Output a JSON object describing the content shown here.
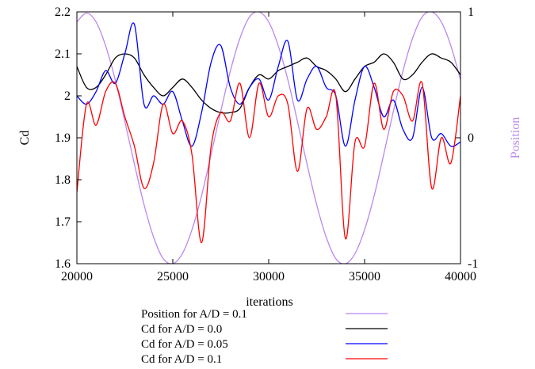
{
  "chart_data": {
    "type": "line",
    "xlabel": "iterations",
    "ylabel": "Cd",
    "y2label": "Position",
    "xlim": [
      20000,
      40000
    ],
    "ylim": [
      1.6,
      2.2
    ],
    "y2lim": [
      -1,
      1
    ],
    "xticks": [
      "20000",
      "25000",
      "30000",
      "35000",
      "40000"
    ],
    "yticks": [
      "1.6",
      "1.7",
      "1.8",
      "1.9",
      "2",
      "2.1",
      "2.2"
    ],
    "y2ticks": [
      "-1",
      "0",
      "1"
    ],
    "grid": false,
    "legend_position": "bottom-center",
    "series": [
      {
        "name": "Position for A/D = 0.1",
        "axis": "y2",
        "color": "#bb88ee",
        "x": [
          20000,
          20500,
          21000,
          21500,
          22000,
          22500,
          23000,
          23500,
          24000,
          24500,
          25000,
          25500,
          26000,
          26500,
          27000,
          27500,
          28000,
          28500,
          29000,
          29500,
          30000,
          30500,
          31000,
          31500,
          32000,
          32500,
          33000,
          33500,
          34000,
          34500,
          35000,
          35500,
          36000,
          36500,
          37000,
          37500,
          38000,
          38500,
          39000,
          39500,
          40000
        ],
        "values": [
          0.92,
          0.99,
          0.92,
          0.73,
          0.46,
          0.13,
          -0.21,
          -0.53,
          -0.79,
          -0.96,
          -1.0,
          -0.92,
          -0.73,
          -0.46,
          -0.13,
          0.21,
          0.53,
          0.79,
          0.96,
          1.0,
          0.92,
          0.73,
          0.46,
          0.13,
          -0.21,
          -0.53,
          -0.79,
          -0.96,
          -1.0,
          -0.92,
          -0.73,
          -0.46,
          -0.13,
          0.21,
          0.53,
          0.79,
          0.96,
          1.0,
          0.92,
          0.73,
          0.46
        ]
      },
      {
        "name": "Cd for A/D = 0.0",
        "axis": "y",
        "color": "#000000",
        "x": [
          20000,
          20500,
          21000,
          21500,
          22000,
          22500,
          23000,
          23500,
          24000,
          24500,
          25000,
          25500,
          26000,
          26500,
          27000,
          27500,
          28000,
          28500,
          29000,
          29500,
          30000,
          30500,
          31000,
          31500,
          32000,
          32500,
          33000,
          33500,
          34000,
          34500,
          35000,
          35500,
          36000,
          36500,
          37000,
          37500,
          38000,
          38500,
          39000,
          39500,
          40000
        ],
        "values": [
          2.07,
          2.02,
          2.02,
          2.05,
          2.09,
          2.1,
          2.09,
          2.05,
          2.02,
          2.0,
          2.02,
          2.04,
          2.02,
          1.99,
          1.97,
          1.96,
          1.96,
          1.97,
          2.02,
          2.05,
          2.04,
          2.06,
          2.07,
          2.08,
          2.09,
          2.07,
          2.06,
          2.04,
          2.01,
          2.04,
          2.07,
          2.08,
          2.1,
          2.08,
          2.04,
          2.05,
          2.08,
          2.1,
          2.09,
          2.08,
          2.05
        ]
      },
      {
        "name": "Cd for A/D = 0.05",
        "axis": "y",
        "color": "#0000ff",
        "x": [
          20000,
          20500,
          21000,
          21500,
          22000,
          22500,
          23000,
          23500,
          24000,
          24500,
          25000,
          25500,
          26000,
          26500,
          27000,
          27500,
          28000,
          28500,
          29000,
          29500,
          30000,
          30500,
          31000,
          31500,
          32000,
          32500,
          33000,
          33500,
          34000,
          34500,
          35000,
          35500,
          36000,
          36500,
          37000,
          37500,
          38000,
          38500,
          39000,
          39500,
          40000
        ],
        "values": [
          2.0,
          1.98,
          2.01,
          2.06,
          2.03,
          2.1,
          2.17,
          1.98,
          2.0,
          1.98,
          2.01,
          1.94,
          1.88,
          1.96,
          2.08,
          2.12,
          2.02,
          1.98,
          2.02,
          2.04,
          1.99,
          2.07,
          2.13,
          1.99,
          2.04,
          2.07,
          2.02,
          2.0,
          1.88,
          1.99,
          2.07,
          2.02,
          1.95,
          1.99,
          1.92,
          1.9,
          2.02,
          1.9,
          1.91,
          1.88,
          1.89
        ]
      },
      {
        "name": "Cd for A/D = 0.1",
        "axis": "y",
        "color": "#ff0000",
        "x": [
          20000,
          20500,
          21000,
          21500,
          22000,
          22500,
          23000,
          23500,
          24000,
          24500,
          25000,
          25500,
          26000,
          26500,
          27000,
          27500,
          28000,
          28500,
          29000,
          29500,
          30000,
          30500,
          31000,
          31500,
          32000,
          32500,
          33000,
          33500,
          34000,
          34500,
          35000,
          35500,
          36000,
          36500,
          37000,
          37500,
          38000,
          38500,
          39000,
          39500,
          40000
        ],
        "values": [
          1.77,
          1.98,
          1.93,
          2.01,
          2.03,
          1.95,
          1.88,
          1.78,
          1.84,
          1.98,
          1.91,
          1.94,
          1.86,
          1.65,
          1.88,
          1.96,
          1.94,
          2.03,
          1.9,
          2.03,
          1.95,
          2.0,
          1.98,
          1.82,
          1.97,
          1.92,
          1.95,
          2.0,
          1.66,
          1.89,
          1.88,
          2.03,
          1.92,
          2.01,
          2.0,
          1.94,
          2.03,
          1.78,
          1.9,
          1.84,
          2.0
        ]
      }
    ]
  }
}
